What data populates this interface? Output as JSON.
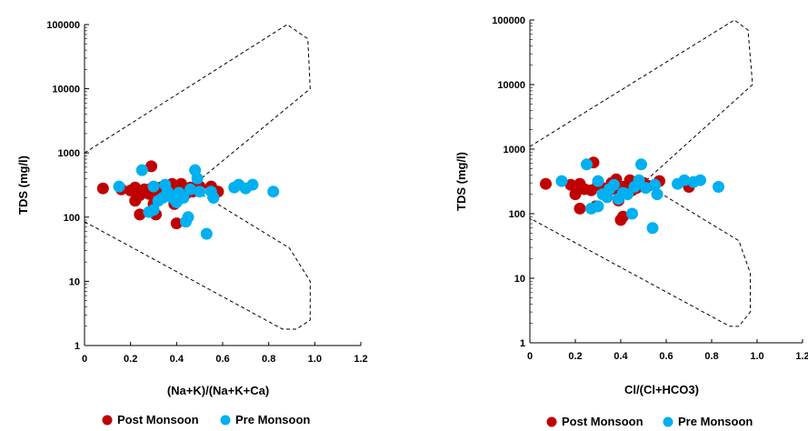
{
  "chart_data": [
    {
      "type": "scatter",
      "xlabel": "(Na+K)/(Na+K+Ca)",
      "ylabel": "TDS (mg/l)",
      "xlim": [
        0,
        1.2
      ],
      "ylim": [
        1,
        100000
      ],
      "yscale": "log",
      "xticks": [
        "0",
        "0.2",
        "0.4",
        "0.6",
        "0.8",
        "1.0",
        "1.2"
      ],
      "yticks": [
        "1",
        "10",
        "100",
        "1000",
        "10000",
        "100000"
      ],
      "envelope": [
        [
          0,
          1000
        ],
        [
          0.88,
          100000
        ],
        [
          0.97,
          60000
        ],
        [
          0.98,
          10000
        ],
        [
          0.46,
          290
        ],
        [
          0.89,
          33
        ],
        [
          0.98,
          10
        ],
        [
          0.98,
          2.5
        ],
        [
          0.92,
          1.8
        ],
        [
          0.86,
          1.8
        ],
        [
          0,
          85
        ]
      ],
      "legend": {
        "position": "bottom",
        "entries": [
          {
            "name": "Post Monsoon",
            "color": "#c00000"
          },
          {
            "name": "Pre Monsoon",
            "color": "#00b0f0"
          }
        ]
      },
      "series": [
        {
          "name": "Post Monsoon",
          "color": "#c00000",
          "points": [
            [
              0.08,
              280
            ],
            [
              0.16,
              270
            ],
            [
              0.2,
              260
            ],
            [
              0.22,
              180
            ],
            [
              0.22,
              290
            ],
            [
              0.24,
              110
            ],
            [
              0.24,
              220
            ],
            [
              0.26,
              270
            ],
            [
              0.28,
              230
            ],
            [
              0.29,
              280
            ],
            [
              0.29,
              620
            ],
            [
              0.3,
              160
            ],
            [
              0.31,
              110
            ],
            [
              0.32,
              250
            ],
            [
              0.33,
              290
            ],
            [
              0.34,
              210
            ],
            [
              0.36,
              300
            ],
            [
              0.38,
              330
            ],
            [
              0.38,
              240
            ],
            [
              0.39,
              160
            ],
            [
              0.4,
              80
            ],
            [
              0.4,
              240
            ],
            [
              0.41,
              270
            ],
            [
              0.42,
              330
            ],
            [
              0.44,
              230
            ],
            [
              0.46,
              290
            ],
            [
              0.47,
              250
            ],
            [
              0.5,
              300
            ],
            [
              0.55,
              300
            ],
            [
              0.58,
              250
            ]
          ]
        },
        {
          "name": "Pre Monsoon",
          "color": "#00b0f0",
          "points": [
            [
              0.15,
              300
            ],
            [
              0.25,
              540
            ],
            [
              0.28,
              120
            ],
            [
              0.3,
              300
            ],
            [
              0.3,
              130
            ],
            [
              0.32,
              180
            ],
            [
              0.34,
              200
            ],
            [
              0.35,
              320
            ],
            [
              0.36,
              250
            ],
            [
              0.38,
              200
            ],
            [
              0.4,
              170
            ],
            [
              0.41,
              240
            ],
            [
              0.43,
              200
            ],
            [
              0.44,
              85
            ],
            [
              0.45,
              100
            ],
            [
              0.46,
              270
            ],
            [
              0.48,
              540
            ],
            [
              0.49,
              400
            ],
            [
              0.5,
              250
            ],
            [
              0.53,
              55
            ],
            [
              0.55,
              250
            ],
            [
              0.56,
              200
            ],
            [
              0.65,
              290
            ],
            [
              0.67,
              320
            ],
            [
              0.7,
              280
            ],
            [
              0.73,
              320
            ],
            [
              0.82,
              250
            ]
          ]
        }
      ]
    },
    {
      "type": "scatter",
      "xlabel": "Cl/(Cl+HCO3)",
      "ylabel": "TDS (mg/l)",
      "xlim": [
        0,
        1.2
      ],
      "ylim": [
        1,
        100000
      ],
      "yscale": "log",
      "xticks": [
        "0",
        "0.2",
        "0.4",
        "0.6",
        "0.8",
        "1.0",
        "1.2"
      ],
      "yticks": [
        "1",
        "10",
        "100",
        "1000",
        "10000",
        "100000"
      ],
      "envelope": [
        [
          0,
          1100
        ],
        [
          0.9,
          100000
        ],
        [
          0.96,
          70000
        ],
        [
          0.98,
          10000
        ],
        [
          0.5,
          300
        ],
        [
          0.92,
          38
        ],
        [
          0.97,
          12
        ],
        [
          0.97,
          3
        ],
        [
          0.92,
          1.8
        ],
        [
          0.88,
          1.8
        ],
        [
          0,
          85
        ]
      ],
      "legend": {
        "position": "bottom",
        "entries": [
          {
            "name": "Post Monsoon",
            "color": "#c00000"
          },
          {
            "name": "Pre Monsoon",
            "color": "#00b0f0"
          }
        ]
      },
      "series": [
        {
          "name": "Post Monsoon",
          "color": "#c00000",
          "points": [
            [
              0.07,
              290
            ],
            [
              0.18,
              280
            ],
            [
              0.2,
              200
            ],
            [
              0.22,
              120
            ],
            [
              0.22,
              290
            ],
            [
              0.24,
              240
            ],
            [
              0.27,
              230
            ],
            [
              0.28,
              620
            ],
            [
              0.29,
              130
            ],
            [
              0.3,
              290
            ],
            [
              0.32,
              250
            ],
            [
              0.34,
              200
            ],
            [
              0.36,
              300
            ],
            [
              0.38,
              340
            ],
            [
              0.38,
              240
            ],
            [
              0.39,
              160
            ],
            [
              0.4,
              80
            ],
            [
              0.41,
              90
            ],
            [
              0.41,
              260
            ],
            [
              0.44,
              330
            ],
            [
              0.45,
              230
            ],
            [
              0.47,
              250
            ],
            [
              0.5,
              300
            ],
            [
              0.52,
              270
            ],
            [
              0.55,
              280
            ],
            [
              0.57,
              320
            ],
            [
              0.7,
              260
            ]
          ]
        },
        {
          "name": "Pre Monsoon",
          "color": "#00b0f0",
          "points": [
            [
              0.14,
              320
            ],
            [
              0.25,
              580
            ],
            [
              0.27,
              120
            ],
            [
              0.3,
              320
            ],
            [
              0.3,
              130
            ],
            [
              0.32,
              200
            ],
            [
              0.34,
              180
            ],
            [
              0.35,
              240
            ],
            [
              0.37,
              280
            ],
            [
              0.39,
              170
            ],
            [
              0.41,
              210
            ],
            [
              0.43,
              200
            ],
            [
              0.45,
              100
            ],
            [
              0.46,
              260
            ],
            [
              0.48,
              330
            ],
            [
              0.49,
              580
            ],
            [
              0.51,
              250
            ],
            [
              0.54,
              60
            ],
            [
              0.55,
              280
            ],
            [
              0.56,
              200
            ],
            [
              0.65,
              290
            ],
            [
              0.68,
              330
            ],
            [
              0.72,
              310
            ],
            [
              0.75,
              330
            ],
            [
              0.83,
              260
            ]
          ]
        }
      ]
    }
  ]
}
